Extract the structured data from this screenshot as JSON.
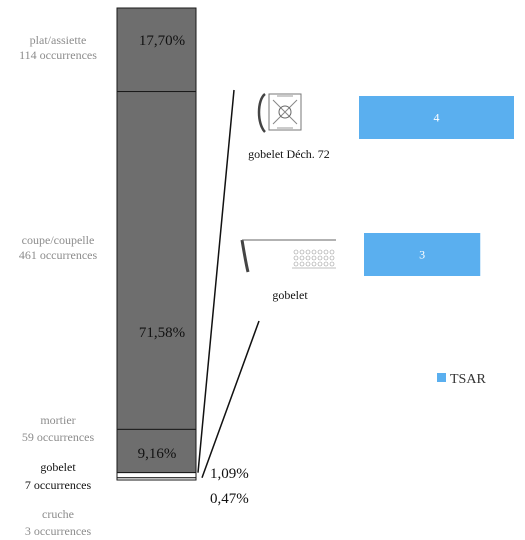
{
  "chart_data": {
    "type": "bar",
    "stacked_column": {
      "segments": [
        {
          "category": "plat/assiette",
          "occurrences_label": "114 occurrences",
          "percent": 17.7,
          "percent_label": "17,70%",
          "color": "#6e6e6e"
        },
        {
          "category": "coupe/coupelle",
          "occurrences_label": "461 occurrences",
          "percent": 71.58,
          "percent_label": "71,58%",
          "color": "#6e6e6e"
        },
        {
          "category": "mortier",
          "occurrences_label": "59 occurrences",
          "percent": 9.16,
          "percent_label": "9,16%",
          "color": "#6e6e6e"
        },
        {
          "category": "gobelet",
          "occurrences_label": "7 occurrences",
          "percent": 1.09,
          "percent_label": "1,09%",
          "color": "#ffffff"
        },
        {
          "category": "cruche",
          "occurrences_label": "3 occurrences",
          "percent": 0.47,
          "percent_label": "0,47%",
          "color": "#ffffff"
        }
      ]
    },
    "breakdown_bars": {
      "series_name": "TSAR",
      "color": "#5aafef",
      "items": [
        {
          "label": "gobelet Déch. 72",
          "value": 4,
          "value_label": "4"
        },
        {
          "label": "gobelet",
          "value": 3,
          "value_label": "3"
        }
      ]
    },
    "legend": {
      "entry": "TSAR",
      "placement": "right"
    }
  }
}
